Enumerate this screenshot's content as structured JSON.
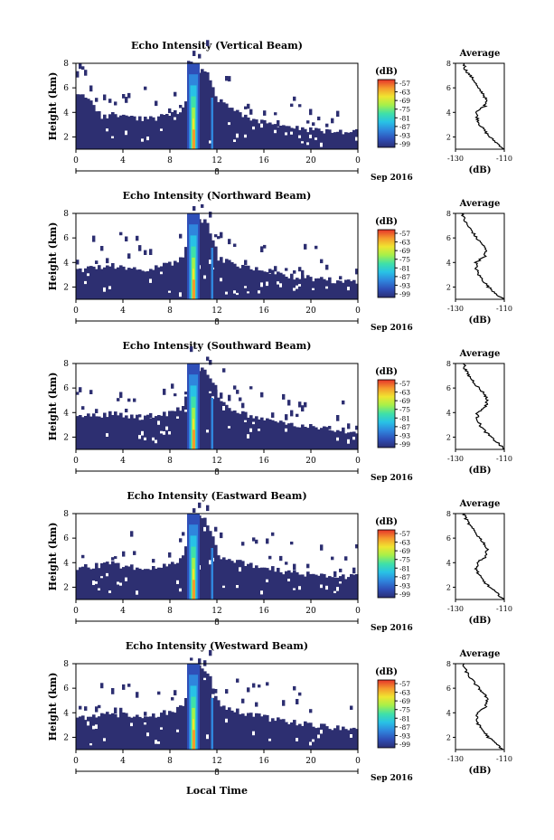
{
  "colors": {
    "background_echo": "#2d2f71",
    "colorbar_stops": [
      "#2b2f74",
      "#2f4fb8",
      "#2f86dd",
      "#28c2e6",
      "#3fe0a8",
      "#a6f04a",
      "#f0e530",
      "#f59a2d",
      "#e5332a"
    ]
  },
  "colorbar": {
    "unit": "(dB)",
    "tick_labels": [
      "-57",
      "-63",
      "-69",
      "-75",
      "-81",
      "-87",
      "-93",
      "-99"
    ]
  },
  "xaxis": {
    "tick_labels": [
      "0",
      "4",
      "8",
      "12",
      "16",
      "20",
      "0"
    ],
    "date_tick_label": "8",
    "month_label": "Sep 2016",
    "xlabel": "Local Time"
  },
  "avg": {
    "title": "Average",
    "xlabel": "(dB)",
    "ytick_labels": [
      "2",
      "4",
      "6",
      "8"
    ]
  },
  "panels": [
    {
      "title": "Echo Intensity (Vertical Beam)",
      "ylabel": "Height (km)",
      "avg_xticks": [
        "-130",
        "-110"
      ]
    },
    {
      "title": "Echo Intensity (Northward Beam)",
      "ylabel": "Height (km)",
      "avg_xticks": [
        "-130",
        "-110"
      ]
    },
    {
      "title": "Echo Intensity (Southward Beam)",
      "ylabel": "Height (km)",
      "avg_xticks": [
        "-130",
        "-110"
      ]
    },
    {
      "title": "Echo Intensity (Eastward Beam)",
      "ylabel": "Height (km)",
      "avg_xticks": [
        "-130",
        "-110"
      ]
    },
    {
      "title": "Echo Intensity (Westward Beam)",
      "ylabel": "Height (km)",
      "avg_xticks": [
        "-130",
        "-110"
      ]
    }
  ],
  "chart_data": [
    {
      "type": "heatmap",
      "title": "Echo Intensity (Vertical Beam)",
      "ylabel": "Height (km)",
      "xlim_hours": [
        0,
        24
      ],
      "ylim_km": [
        1,
        8
      ],
      "zlim_dB": [
        -99,
        -57
      ],
      "echo_top_km": [
        5.4,
        5.3,
        3.6,
        3.8,
        3.7,
        3.5,
        3.5,
        3.6,
        3.9,
        4.3,
        7.5,
        7.4,
        5.0,
        4.3,
        3.8,
        3.4,
        3.2,
        2.9,
        2.8,
        2.6,
        2.6,
        2.5,
        2.4,
        2.4
      ]
    },
    {
      "type": "line",
      "title": "Average",
      "xlabel": "(dB)",
      "ylim": [
        1,
        8
      ],
      "xlim": [
        -130,
        -110
      ],
      "heights": [
        8,
        7.5,
        7,
        6.5,
        6,
        5.5,
        5,
        4.5,
        4,
        3.5,
        3,
        2.5,
        2,
        1.5,
        1
      ],
      "values": [
        -126.5,
        -126,
        -124,
        -122,
        -121,
        -118.5,
        -117.5,
        -118,
        -121.5,
        -121,
        -120,
        -118,
        -116,
        -113,
        -110
      ]
    },
    {
      "type": "heatmap",
      "title": "Echo Intensity (Northward Beam)",
      "ylabel": "Height (km)",
      "xlim_hours": [
        0,
        24
      ],
      "ylim_km": [
        1,
        8
      ],
      "zlim_dB": [
        -99,
        -57
      ],
      "echo_top_km": [
        3.3,
        3.5,
        3.6,
        3.7,
        3.5,
        3.4,
        3.5,
        3.7,
        3.9,
        4.3,
        7.6,
        7.4,
        4.4,
        4.0,
        3.7,
        3.5,
        3.3,
        3.1,
        2.9,
        2.8,
        2.7,
        2.6,
        2.5,
        2.5
      ]
    },
    {
      "type": "line",
      "title": "Average",
      "xlabel": "(dB)",
      "ylim": [
        1,
        8
      ],
      "xlim": [
        -130,
        -110
      ],
      "heights": [
        8,
        7.5,
        7,
        6.5,
        6,
        5.5,
        5,
        4.5,
        4,
        3.5,
        3,
        2.5,
        2,
        1.5,
        1
      ],
      "values": [
        -127,
        -126.5,
        -125,
        -123,
        -121.5,
        -119,
        -117.5,
        -118,
        -121.5,
        -121.5,
        -120.5,
        -118.5,
        -116.5,
        -113.5,
        -110.5
      ]
    },
    {
      "type": "heatmap",
      "title": "Echo Intensity (Southward Beam)",
      "ylabel": "Height (km)",
      "xlim_hours": [
        0,
        24
      ],
      "ylim_km": [
        1,
        8
      ],
      "zlim_dB": [
        -99,
        -57
      ],
      "echo_top_km": [
        3.6,
        3.7,
        3.8,
        3.9,
        3.7,
        3.6,
        3.6,
        3.8,
        4.0,
        4.4,
        7.7,
        7.5,
        5.2,
        4.2,
        3.9,
        3.6,
        3.4,
        3.2,
        3.0,
        2.9,
        2.8,
        2.7,
        2.6,
        2.5
      ]
    },
    {
      "type": "line",
      "title": "Average",
      "xlabel": "(dB)",
      "ylim": [
        1,
        8
      ],
      "xlim": [
        -130,
        -110
      ],
      "heights": [
        8,
        7.5,
        7,
        6.5,
        6,
        5.5,
        5,
        4.5,
        4,
        3.5,
        3,
        2.5,
        2,
        1.5,
        1
      ],
      "values": [
        -126.5,
        -126,
        -124.5,
        -122.5,
        -120.5,
        -118,
        -117,
        -117.5,
        -121,
        -121,
        -120,
        -118,
        -115.5,
        -112.5,
        -110
      ]
    },
    {
      "type": "heatmap",
      "title": "Echo Intensity (Eastward Beam)",
      "ylabel": "Height (km)",
      "xlim_hours": [
        0,
        24
      ],
      "ylim_km": [
        1,
        8
      ],
      "zlim_dB": [
        -99,
        -57
      ],
      "echo_top_km": [
        3.5,
        3.7,
        3.8,
        3.9,
        3.7,
        3.6,
        3.6,
        3.8,
        4.0,
        4.4,
        7.7,
        7.5,
        4.6,
        4.2,
        4.0,
        3.8,
        3.6,
        3.4,
        3.2,
        3.1,
        3.0,
        3.0,
        2.9,
        2.9
      ]
    },
    {
      "type": "line",
      "title": "Average",
      "xlabel": "(dB)",
      "ylim": [
        1,
        8
      ],
      "xlim": [
        -130,
        -110
      ],
      "heights": [
        8,
        7.5,
        7,
        6.5,
        6,
        5.5,
        5,
        4.5,
        4,
        3.5,
        3,
        2.5,
        2,
        1.5,
        1
      ],
      "values": [
        -126.5,
        -125.5,
        -124,
        -122,
        -120,
        -118,
        -117,
        -117.5,
        -121,
        -121.5,
        -120.5,
        -118.5,
        -116,
        -113,
        -110
      ]
    },
    {
      "type": "heatmap",
      "title": "Echo Intensity (Westward Beam)",
      "ylabel": "Height (km)",
      "xlim_hours": [
        0,
        24
      ],
      "ylim_km": [
        1,
        8
      ],
      "zlim_dB": [
        -99,
        -57
      ],
      "echo_top_km": [
        3.6,
        3.7,
        3.8,
        3.9,
        3.8,
        3.7,
        3.7,
        3.9,
        4.1,
        4.5,
        7.8,
        7.6,
        4.8,
        4.3,
        4.0,
        3.8,
        3.6,
        3.4,
        3.3,
        3.1,
        3.0,
        2.9,
        2.8,
        2.8
      ]
    },
    {
      "type": "line",
      "title": "Average",
      "xlabel": "(dB)",
      "ylim": [
        1,
        8
      ],
      "xlim": [
        -130,
        -110
      ],
      "heights": [
        8,
        7.5,
        7,
        6.5,
        6,
        5.5,
        5,
        4.5,
        4,
        3.5,
        3,
        2.5,
        2,
        1.5,
        1
      ],
      "values": [
        -127,
        -126,
        -124.5,
        -122.5,
        -120.5,
        -118,
        -117,
        -117.5,
        -121,
        -121.5,
        -120.5,
        -118.5,
        -116.5,
        -113.5,
        -110.5
      ]
    }
  ]
}
